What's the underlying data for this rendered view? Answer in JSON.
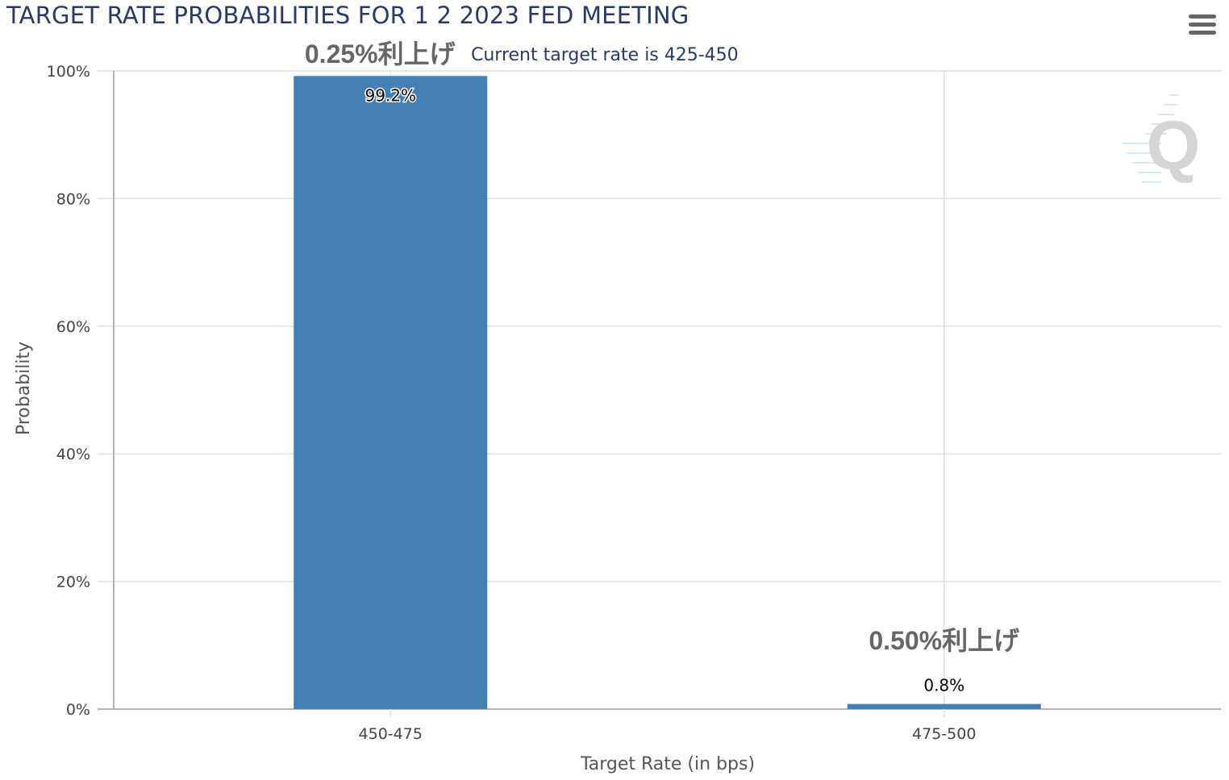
{
  "chart_data": {
    "type": "bar",
    "title": "TARGET RATE PROBABILITIES FOR 1 2 2023 FED MEETING",
    "subtitle": "Current target rate is 425-450",
    "xlabel": "Target Rate (in bps)",
    "ylabel": "Probability",
    "categories": [
      "450-475",
      "475-500"
    ],
    "values": [
      99.2,
      0.8
    ],
    "data_labels": [
      "99.2%",
      "0.8%"
    ],
    "ylim": [
      0,
      100
    ],
    "yticks": [
      "0%",
      "20%",
      "40%",
      "60%",
      "80%",
      "100%"
    ],
    "annotations": [
      "0.25%利上げ",
      "0.50%利上げ"
    ],
    "grid": true,
    "bar_color": "#4380b5"
  },
  "menu_icon": "hamburger-menu-icon",
  "watermark_icon": "q-logo-icon"
}
